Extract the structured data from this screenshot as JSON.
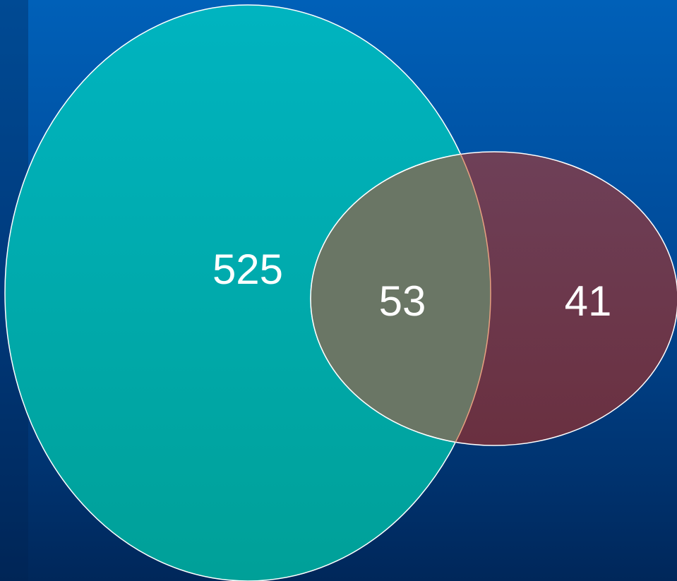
{
  "venn": {
    "left_only_count": "525",
    "overlap_count": "53",
    "right_only_count": "41"
  },
  "colors": {
    "background_top": "#0060b8",
    "background_bottom": "#00275a",
    "left_set_fill": "#00aeb8",
    "right_set_fill": "#733250",
    "overlap_fill": "#6a7665",
    "outline": "#ffffff",
    "label": "#ffffff"
  }
}
